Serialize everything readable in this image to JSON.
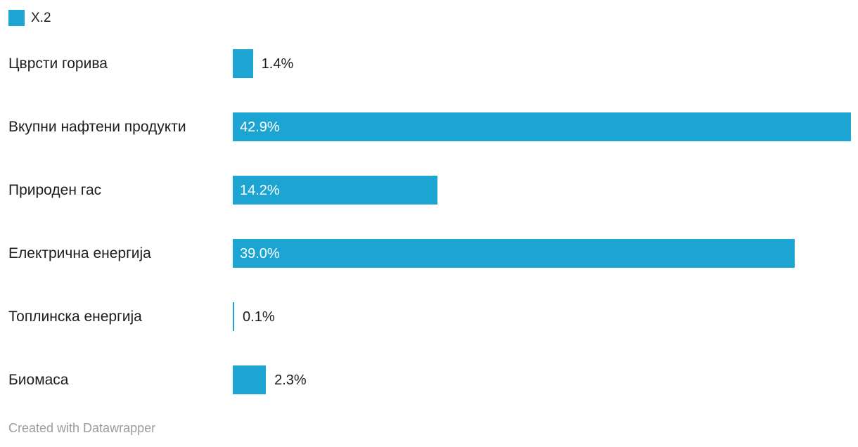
{
  "colors": {
    "bar": "#1ca5d3",
    "label_text": "#1d1d1d",
    "value_inside_text": "#ffffff",
    "footer_text": "#9b9b9b"
  },
  "legend": {
    "label": "X.2",
    "swatch_color": "#1ca5d3"
  },
  "chart_data": {
    "type": "bar",
    "orientation": "horizontal",
    "title": "",
    "xlabel": "",
    "ylabel": "",
    "grid": false,
    "legend_position": "top-left",
    "legend_entries": [
      "X.2"
    ],
    "categories": [
      "Цврсти горива",
      "Вкупни нафтени продукти",
      "Природен гас",
      "Електрична енергија",
      "Топлинска енергија",
      "Биомаса"
    ],
    "values": [
      1.4,
      42.9,
      14.2,
      39.0,
      0.1,
      2.3
    ],
    "value_labels": [
      "1.4%",
      "42.9%",
      "14.2%",
      "39.0%",
      "0.1%",
      "2.3%"
    ],
    "xlim": [
      0,
      42.9
    ],
    "value_unit": "%"
  },
  "footer": {
    "attribution": "Created with Datawrapper"
  }
}
